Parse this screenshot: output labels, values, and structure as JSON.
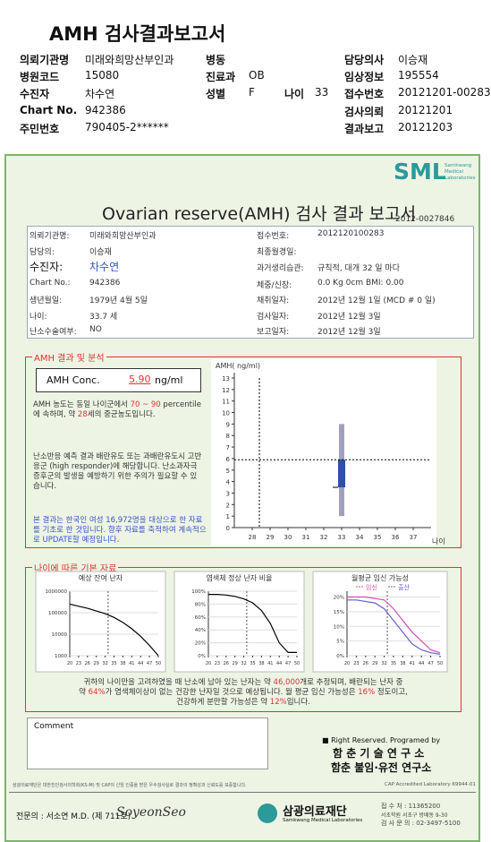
{
  "header": {
    "title": "AMH 검사결과보고서",
    "fields": [
      {
        "label": "의뢰기관명",
        "value": "미래와희망산부인과"
      },
      {
        "label": "병원코드",
        "value": "15080"
      },
      {
        "label": "수진자",
        "value": "차수연"
      },
      {
        "label": "Chart No.",
        "value": "942386"
      },
      {
        "label": "주민번호",
        "value": "790405-2******"
      },
      {
        "label": "병동"
      },
      {
        "label": "진료과",
        "value": "OB"
      },
      {
        "label": "성별",
        "value": "F"
      },
      {
        "label": "나이",
        "value": "33"
      },
      {
        "label": "담당의사",
        "value": "이승재"
      },
      {
        "label": "임상정보",
        "value": "195554"
      },
      {
        "label": "접수번호",
        "value": "20121201-00283"
      },
      {
        "label": "검사의뢰",
        "value": "20121201"
      },
      {
        "label": "결과보고",
        "value": "20121203"
      }
    ]
  },
  "report": {
    "logo": "SML",
    "logo_sub": "Samkwang Medical Laboratories",
    "title": "Ovarian reserve(AMH) 검사 결과 보고서",
    "number": "2012-0027846",
    "left": [
      {
        "label": "의뢰기관명:",
        "value": "미래와희망산부인과"
      },
      {
        "label": "담당의:",
        "value": "이승재"
      },
      {
        "label": "수진자:",
        "value": "차수연"
      },
      {
        "label": "Chart No.:",
        "value": "942386"
      },
      {
        "label": "생년월일:",
        "value": "1979년 4월 5일"
      },
      {
        "label": "나이:",
        "value": "33.7 세"
      },
      {
        "label": "난소수술여부:",
        "value": "NO"
      }
    ],
    "right": [
      {
        "label": "접수번호:",
        "value": "2012120100283"
      },
      {
        "label": "최종월경일:"
      },
      {
        "label": "과거생리습관:",
        "value": "규칙적, 대개  32 일 마다"
      },
      {
        "label": "체중/신장:",
        "value": "0.0 Kg      0cm    BMI:  0.00"
      },
      {
        "label": "채취일자:",
        "value": "2012년 12월 1일  (MCD #  0 일)"
      },
      {
        "label": "검사일자:",
        "value": "2012년 12월 3일"
      },
      {
        "label": "보고일자:",
        "value": "2012년 12월 3일"
      }
    ]
  },
  "amh": {
    "heading": "AMH 결과 및 분석",
    "conc_label": "AMH Conc.",
    "conc_value": "5.90",
    "conc_unit": "ng/ml",
    "para1": [
      "AMH 농도는 동일 나이군에서 ",
      "70 ~ 90",
      " percentile에 속하며, 약 ",
      "28",
      "세의 중균농도입니다."
    ],
    "para2": [
      "난소반응 예측 결과 배란유도 또는 과배란유도시 고반응군 (high responder)에 해당합니다. 난소과자극 증후군의 발생을 예방하기 위한 주의가 필요할 수 있습니다."
    ],
    "para3": [
      "본 결과는 한국인 여성 16,972명을 대상으로 한 자료를 기초로 한 것입니다. 향후 자료를 축적하여 계속적으로 UPDATE할 예정입니다."
    ]
  },
  "amh_chart": {
    "y_label": "AMH( ng/ml)",
    "x_label": "나이",
    "ylim": [
      0,
      13
    ],
    "yticks": [
      0,
      1,
      2,
      3,
      4,
      5,
      6,
      7,
      8,
      9,
      10,
      11,
      12,
      13
    ],
    "xlim": [
      27,
      38
    ],
    "xticks": [
      28,
      29,
      30,
      31,
      32,
      33,
      34,
      35,
      36,
      37
    ],
    "age": 33,
    "range": [
      1,
      9
    ],
    "box": [
      3.5,
      5.9
    ],
    "value": 5.9
  },
  "age_charts": {
    "heading": "나이에 따른 기본 자료",
    "xlim": [
      20,
      50
    ],
    "xticks": [
      20,
      23,
      26,
      29,
      32,
      35,
      38,
      41,
      44,
      47,
      50
    ],
    "marker_x": 33,
    "x": [
      20,
      23,
      26,
      29,
      32,
      35,
      38,
      41,
      44,
      47,
      50
    ],
    "charts": [
      {
        "title": "예상 잔여 난자",
        "log": true,
        "ylim": [
          1000,
          1000000
        ],
        "yticks": [
          1000000,
          100000,
          10000,
          1000
        ],
        "series": [
          {
            "color": "#000000",
            "values": [
              250000,
              200000,
              160000,
              120000,
              90000,
              60000,
              35000,
              18000,
              8000,
              3000,
              1000
            ]
          }
        ]
      },
      {
        "title": "염색체 정상 난자 비율",
        "log": false,
        "ylim": [
          0,
          100
        ],
        "yticks": [
          {
            "value": 100,
            "label": "100%"
          },
          {
            "value": 80,
            "label": "80%"
          },
          {
            "value": 60,
            "label": "60%"
          },
          {
            "value": 40,
            "label": "40%"
          },
          {
            "value": 20,
            "label": "20%"
          },
          {
            "value": 0,
            "label": "0%"
          }
        ],
        "series": [
          {
            "color": "#000000",
            "values": [
              95,
              95,
              94,
              92,
              88,
              82,
              70,
              50,
              20,
              5,
              5
            ]
          }
        ]
      },
      {
        "title": "월평균 임신 가능성",
        "log": false,
        "ylim": [
          0,
          22
        ],
        "yticks": [
          {
            "value": 20,
            "label": "20%"
          },
          {
            "value": 15,
            "label": "15%"
          },
          {
            "value": 10,
            "label": "10%"
          },
          {
            "value": 5,
            "label": "5%"
          },
          {
            "value": 0,
            "label": "0%"
          }
        ],
        "series": [
          {
            "name": "임신",
            "color": "#d04fb8",
            "values": [
              20,
              20,
              20,
              19.5,
              19,
              16,
              12,
              8,
              5,
              2,
              1
            ]
          },
          {
            "name": "출산",
            "color": "#6a5fd0",
            "values": [
              19,
              19,
              18.5,
              18,
              16,
              12,
              8,
              4,
              2,
              1,
              0.5
            ]
          }
        ]
      }
    ]
  },
  "summary": [
    [
      "귀하의 나이만을 고려하였을 때 난소에 남아 있는 난자는 약 ",
      "46,000",
      "개로 추정되며, 배란되는 난자 중"
    ],
    [
      "약 ",
      "64%",
      "가 염색체이상이 없는 건강한 난자일 것으로 예상됩니다. 월 평균 임신 가능성은 ",
      "16%",
      " 정도이고,"
    ],
    [
      "건강하게 분만할 가능성은 약 ",
      "12%",
      "입니다."
    ]
  ],
  "comment_label": "Comment",
  "credits": {
    "rights": "■ Right Reserved. Programed by",
    "lab1": "함 춘 기 술 연 구 소",
    "lab2": "함춘 불임·유전 연구소"
  },
  "footer": {
    "note": "삼광의료재단은 대한진단검사의학회(KS-M) 및 CAP의 신임 인증을 받은 우수검사실로 결과의 정확성과 신뢰도를 보증합니다.",
    "cap": "CAP  Accredited  Laboratory  69944-01",
    "doctor": "전문의 : 서소연 M.D. (제 711호)",
    "signature": "SoyeonSeo",
    "org": "삼광의료재단",
    "org_en": "Samkwang Medical Laboratories",
    "contact1": "접 수 처 : 11365200",
    "contact2": "서초학원 서초구 방배동 9-30",
    "contact3": "검 사 문 의 : 02-3497-5100"
  }
}
